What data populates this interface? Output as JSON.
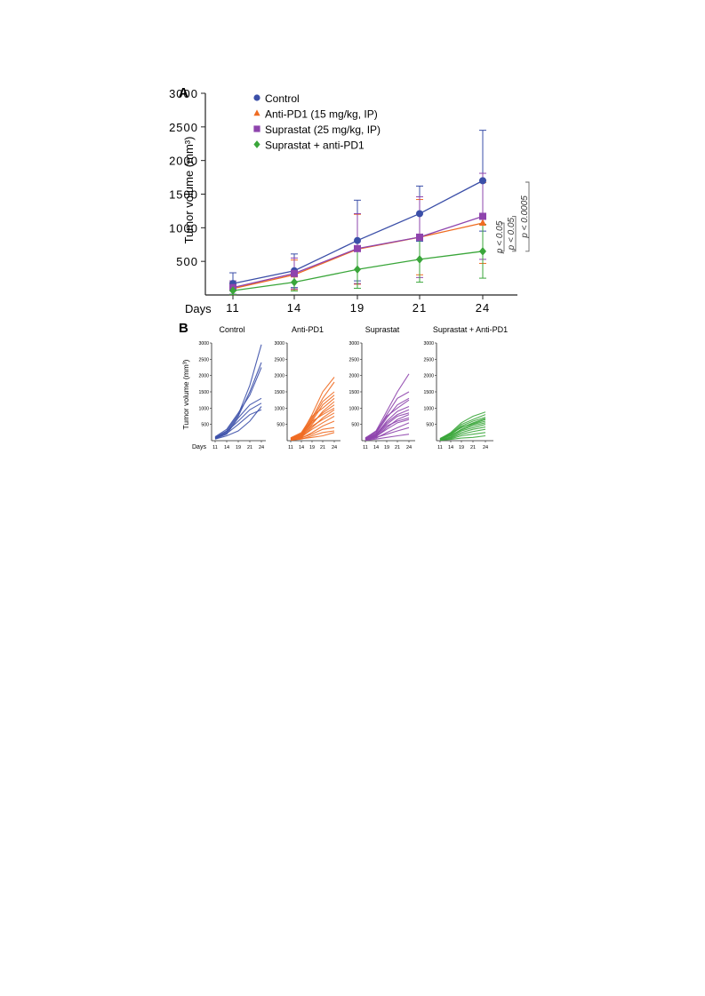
{
  "chart_data": [
    {
      "panel": "A",
      "type": "line",
      "x": [
        11,
        14,
        19,
        21,
        24
      ],
      "xlabel": "Days",
      "ylabel": "Tumor volume (mm³)",
      "ylim": [
        0,
        3000
      ],
      "yticks": [
        500,
        1000,
        1500,
        2000,
        2500,
        3000
      ],
      "error_bars": true,
      "legend_position": "top-left",
      "series": [
        {
          "name": "Control",
          "color": "#3b4fa8",
          "marker": "circle",
          "values": [
            170,
            360,
            810,
            1210,
            1700
          ],
          "err": [
            160,
            250,
            600,
            410,
            750
          ]
        },
        {
          "name": "Anti-PD1 (15 mg/kg, IP)",
          "color": "#ef6c22",
          "marker": "triangle",
          "values": [
            95,
            300,
            680,
            860,
            1070
          ],
          "err": [
            90,
            220,
            520,
            560,
            600
          ]
        },
        {
          "name": "Suprastat (25 mg/kg, IP)",
          "color": "#8e44ad",
          "marker": "square",
          "values": [
            110,
            320,
            690,
            860,
            1170
          ],
          "err": [
            100,
            230,
            520,
            600,
            640
          ]
        },
        {
          "name": "Suprastat + anti-PD1",
          "color": "#3aa63a",
          "marker": "diamond",
          "values": [
            65,
            190,
            380,
            530,
            650
          ],
          "err": [
            60,
            130,
            280,
            340,
            400
          ]
        }
      ],
      "annotations": [
        {
          "text": "p < 0.05",
          "from_series": "Anti-PD1 (15 mg/kg, IP)",
          "to_series": "Suprastat + anti-PD1"
        },
        {
          "text": "p < 0.05",
          "from_series": "Suprastat (25 mg/kg, IP)",
          "to_series": "Suprastat + anti-PD1"
        },
        {
          "text": "p < 0.0005",
          "from_series": "Control",
          "to_series": "Suprastat + anti-PD1"
        }
      ]
    },
    {
      "panel": "B",
      "type": "line",
      "x": [
        11,
        14,
        19,
        21,
        24
      ],
      "xlabel": "Days",
      "ylabel": "Tumor volume (mm³)",
      "ylim": [
        0,
        3000
      ],
      "yticks": [
        500,
        1000,
        1500,
        2000,
        2500,
        3000
      ],
      "subplots": [
        {
          "title": "Control",
          "color": "#3b4fa8",
          "lines": [
            [
              100,
              300,
              800,
              1700,
              2950
            ],
            [
              80,
              250,
              750,
              1500,
              2400
            ],
            [
              120,
              350,
              850,
              1400,
              2250
            ],
            [
              60,
              200,
              700,
              1100,
              1300
            ],
            [
              90,
              280,
              600,
              950,
              1150
            ],
            [
              70,
              220,
              500,
              800,
              950
            ],
            [
              50,
              150,
              300,
              600,
              1050
            ]
          ]
        },
        {
          "title": "Anti-PD1",
          "color": "#ef6c22",
          "lines": [
            [
              70,
              200,
              800,
              1500,
              1950
            ],
            [
              60,
              180,
              700,
              1300,
              1800
            ],
            [
              80,
              220,
              650,
              1200,
              1500
            ],
            [
              50,
              150,
              600,
              1100,
              1400
            ],
            [
              90,
              250,
              750,
              1000,
              1300
            ],
            [
              40,
              120,
              500,
              900,
              1200
            ],
            [
              60,
              160,
              550,
              850,
              1100
            ],
            [
              70,
              200,
              600,
              800,
              1000
            ],
            [
              30,
              100,
              400,
              700,
              950
            ],
            [
              50,
              140,
              450,
              650,
              850
            ],
            [
              40,
              120,
              350,
              550,
              750
            ],
            [
              20,
              80,
              250,
              450,
              600
            ],
            [
              30,
              90,
              200,
              350,
              400
            ],
            [
              10,
              50,
              150,
              250,
              300
            ],
            [
              20,
              60,
              100,
              150,
              250
            ]
          ]
        },
        {
          "title": "Suprastat",
          "color": "#8e44ad",
          "lines": [
            [
              80,
              300,
              900,
              1500,
              2050
            ],
            [
              70,
              250,
              800,
              1300,
              1500
            ],
            [
              60,
              220,
              700,
              1100,
              1300
            ],
            [
              90,
              280,
              750,
              1000,
              1250
            ],
            [
              50,
              180,
              600,
              900,
              1050
            ],
            [
              40,
              150,
              550,
              800,
              950
            ],
            [
              60,
              200,
              500,
              750,
              850
            ],
            [
              30,
              120,
              400,
              650,
              800
            ],
            [
              50,
              160,
              450,
              600,
              700
            ],
            [
              40,
              130,
              350,
              550,
              650
            ],
            [
              20,
              80,
              250,
              400,
              550
            ],
            [
              30,
              100,
              200,
              300,
              400
            ],
            [
              10,
              50,
              100,
              150,
              200
            ]
          ]
        },
        {
          "title": "Suprastat + Anti-PD1",
          "color": "#3aa63a",
          "lines": [
            [
              60,
              250,
              550,
              750,
              880
            ],
            [
              50,
              220,
              500,
              650,
              800
            ],
            [
              40,
              200,
              450,
              600,
              720
            ],
            [
              70,
              230,
              400,
              550,
              680
            ],
            [
              30,
              180,
              420,
              520,
              650
            ],
            [
              50,
              150,
              350,
              500,
              600
            ],
            [
              40,
              160,
              330,
              460,
              550
            ],
            [
              20,
              120,
              300,
              400,
              500
            ],
            [
              30,
              100,
              250,
              350,
              420
            ],
            [
              20,
              80,
              200,
              280,
              350
            ],
            [
              10,
              60,
              150,
              200,
              250
            ],
            [
              10,
              40,
              80,
              100,
              150
            ]
          ]
        }
      ]
    }
  ],
  "labels": {
    "panel_a": "A",
    "panel_b": "B",
    "days": "Days",
    "ylabel_a": "Tumor volume (mm³)",
    "ylabel_b": "Tumor volume (mm³)"
  }
}
